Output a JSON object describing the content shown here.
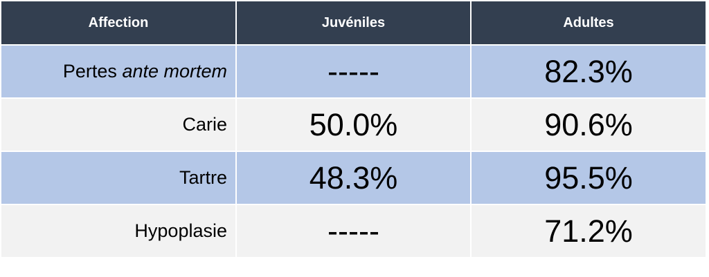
{
  "table": {
    "header": [
      "Affection",
      "Juvéniles",
      "Adultes"
    ],
    "rows": [
      [
        {
          "text": "Pertes",
          "emphasis": "ante mortem"
        },
        "-----",
        "82.3%"
      ],
      [
        "Carie",
        "50.0%",
        "90.6%"
      ],
      [
        "Tartre",
        "48.3%",
        "95.5%"
      ],
      [
        "Hypoplasie",
        "-----",
        "71.2%"
      ]
    ]
  }
}
